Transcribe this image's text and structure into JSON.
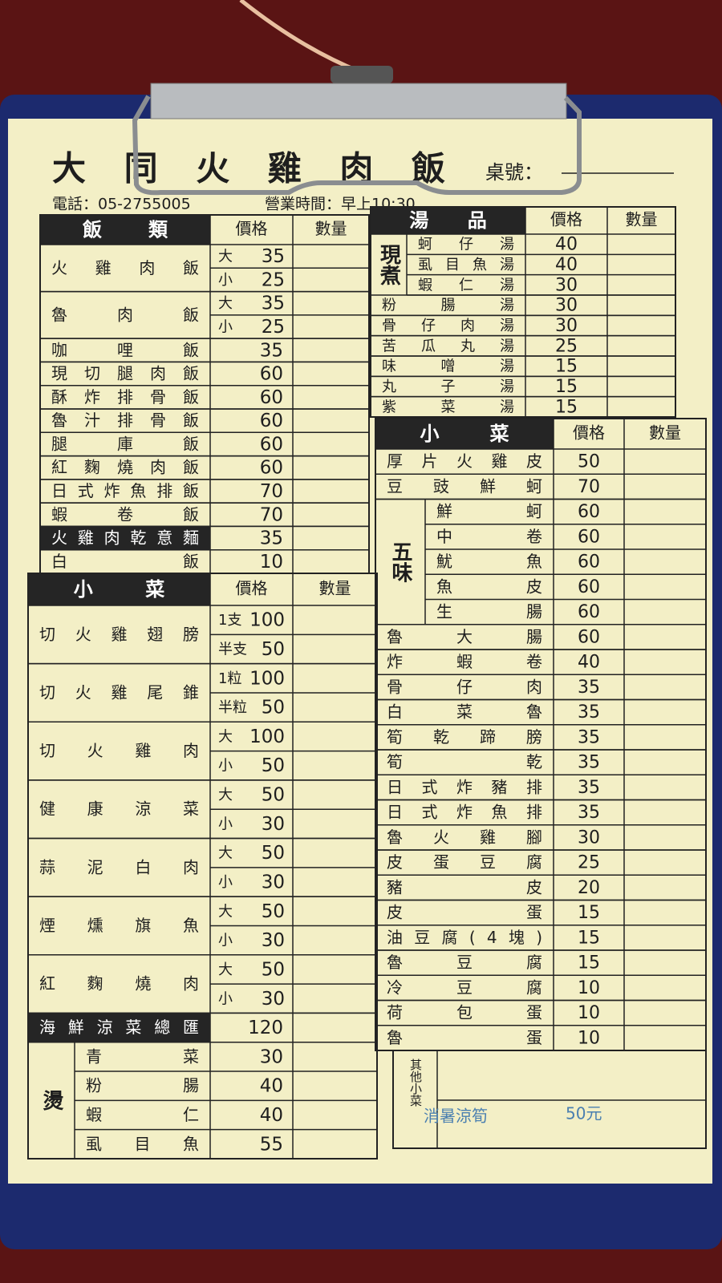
{
  "header": {
    "title": "大同火雞肉飯",
    "table_no": "桌號：",
    "phone": "電話：05-2755005",
    "hours": "營業時間：早上10:30"
  },
  "left": {
    "sections": [
      {
        "title": "飯類",
        "price_col": "價格",
        "qty_col": "數量",
        "rows": [
          {
            "name": "火雞肉飯",
            "sizes": [
              {
                "size": "大",
                "price": 35
              },
              {
                "size": "小",
                "price": 25
              }
            ]
          },
          {
            "name": "魯肉飯",
            "sizes": [
              {
                "size": "大",
                "price": 35
              },
              {
                "size": "小",
                "price": 25
              }
            ]
          },
          {
            "name": "咖哩飯",
            "price": 35
          },
          {
            "name": "現切腿肉飯",
            "price": 60
          },
          {
            "name": "酥炸排骨飯",
            "price": 60
          },
          {
            "name": "魯汁排骨飯",
            "price": 60
          },
          {
            "name": "腿庫飯",
            "price": 60
          },
          {
            "name": "紅麴燒肉飯",
            "price": 60
          },
          {
            "name": "日式炸魚排飯",
            "price": 70
          },
          {
            "name": "蝦卷飯",
            "price": 70
          },
          {
            "name": "火雞肉乾意麵",
            "price": 35,
            "dark": true
          },
          {
            "name": "白飯",
            "price": 10
          }
        ]
      },
      {
        "title": "小菜",
        "price_col": "價格",
        "qty_col": "數量",
        "rows": [
          {
            "name": "切火雞翅膀",
            "sizes": [
              {
                "size": "1支",
                "price": 100
              },
              {
                "size": "半支",
                "price": 50
              }
            ]
          },
          {
            "name": "切火雞尾錐",
            "sizes": [
              {
                "size": "1粒",
                "price": 100
              },
              {
                "size": "半粒",
                "price": 50
              }
            ]
          },
          {
            "name": "切火雞肉",
            "sizes": [
              {
                "size": "大",
                "price": 100
              },
              {
                "size": "小",
                "price": 50
              }
            ]
          },
          {
            "name": "健康涼菜",
            "sizes": [
              {
                "size": "大",
                "price": 50
              },
              {
                "size": "小",
                "price": 30
              }
            ]
          },
          {
            "name": "蒜泥白肉",
            "sizes": [
              {
                "size": "大",
                "price": 50
              },
              {
                "size": "小",
                "price": 30
              }
            ]
          },
          {
            "name": "煙燻旗魚",
            "sizes": [
              {
                "size": "大",
                "price": 50
              },
              {
                "size": "小",
                "price": 30
              }
            ]
          },
          {
            "name": "紅麴燒肉",
            "sizes": [
              {
                "size": "大",
                "price": 50
              },
              {
                "size": "小",
                "price": 30
              }
            ]
          },
          {
            "name": "海鮮涼菜總匯",
            "price": 120,
            "dark": true
          },
          {
            "group": "燙",
            "items": [
              {
                "name": "青菜",
                "price": 30
              },
              {
                "name": "粉腸",
                "price": 40
              },
              {
                "name": "蝦仁",
                "price": 40
              },
              {
                "name": "虱目魚",
                "price": 55
              }
            ]
          }
        ]
      }
    ]
  },
  "right": {
    "sections": [
      {
        "title": "湯品",
        "price_col": "價格",
        "qty_col": "數量",
        "rows": [
          {
            "group": "現煮",
            "items": [
              {
                "name": "蚵仔湯",
                "price": 40
              },
              {
                "name": "虱目魚湯",
                "price": 40
              },
              {
                "name": "蝦仁湯",
                "price": 30
              }
            ]
          },
          {
            "name": "粉腸湯",
            "price": 30
          },
          {
            "name": "骨仔肉湯",
            "price": 30
          },
          {
            "name": "苦瓜丸湯",
            "price": 25
          },
          {
            "name": "味噌湯",
            "price": 15
          },
          {
            "name": "丸子湯",
            "price": 15
          },
          {
            "name": "紫菜湯",
            "price": 15
          }
        ]
      },
      {
        "title": "小菜",
        "price_col": "價格",
        "qty_col": "數量",
        "rows": [
          {
            "name": "厚片火雞皮",
            "price": 50
          },
          {
            "name": "豆豉鮮蚵",
            "price": 70
          },
          {
            "group": "五味",
            "items": [
              {
                "name": "鮮蚵",
                "price": 60
              },
              {
                "name": "中卷",
                "price": 60
              },
              {
                "name": "魷魚",
                "price": 60
              },
              {
                "name": "魚皮",
                "price": 60
              },
              {
                "name": "生腸",
                "price": 60
              }
            ]
          },
          {
            "name": "魯大腸",
            "price": 60
          },
          {
            "name": "炸蝦卷",
            "price": 40
          },
          {
            "name": "骨仔肉",
            "price": 35
          },
          {
            "name": "白菜魯",
            "price": 35
          },
          {
            "name": "筍乾蹄膀",
            "price": 35
          },
          {
            "name": "筍乾",
            "price": 35
          },
          {
            "name": "日式炸豬排",
            "price": 35
          },
          {
            "name": "日式炸魚排",
            "price": 35
          },
          {
            "name": "魯火雞腳",
            "price": 30
          },
          {
            "name": "皮蛋豆腐",
            "price": 25
          },
          {
            "name": "豬皮",
            "price": 20
          },
          {
            "name": "皮蛋",
            "price": 15
          },
          {
            "name": "油豆腐(4塊)",
            "price": 15
          },
          {
            "name": "魯豆腐",
            "price": 15
          },
          {
            "name": "冷豆腐",
            "price": 10
          },
          {
            "name": "荷包蛋",
            "price": 10
          },
          {
            "name": "魯蛋",
            "price": 10
          }
        ]
      }
    ],
    "other": {
      "label": "其他小菜",
      "note": "消暑涼筍",
      "note_price": "50元"
    }
  }
}
